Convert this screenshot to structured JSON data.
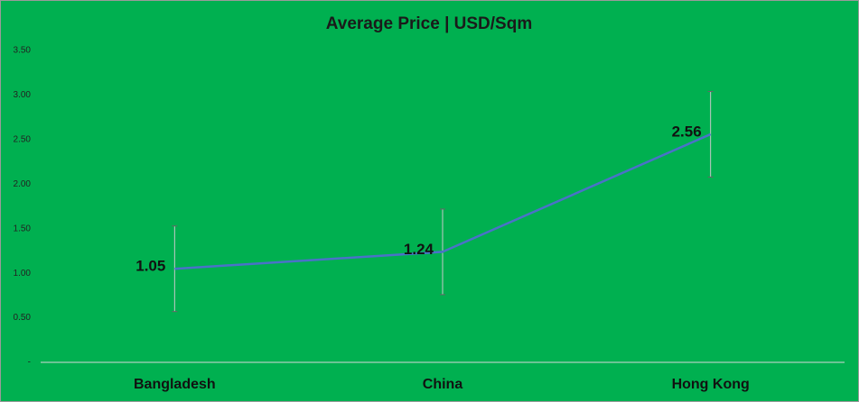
{
  "chart_data": {
    "type": "line",
    "title": "Average Price | USD/Sqm",
    "categories": [
      "Bangladesh",
      "China",
      "Hong Kong"
    ],
    "series": [
      {
        "name": "Average Price",
        "color": "#4a72c8",
        "values": [
          1.05,
          1.24,
          2.56
        ],
        "errors": [
          0.48,
          0.48,
          0.48
        ]
      }
    ],
    "ylim": [
      0,
      3.5
    ],
    "yticks": [
      {
        "value": 0,
        "label": "-"
      },
      {
        "value": 0.5,
        "label": "0.50"
      },
      {
        "value": 1,
        "label": "1.00"
      },
      {
        "value": 1.5,
        "label": "1.50"
      },
      {
        "value": 2,
        "label": "2.00"
      },
      {
        "value": 2.5,
        "label": "2.50"
      },
      {
        "value": 3,
        "label": "3.00"
      },
      {
        "value": 3.5,
        "label": "3.50"
      }
    ],
    "grid": false
  }
}
